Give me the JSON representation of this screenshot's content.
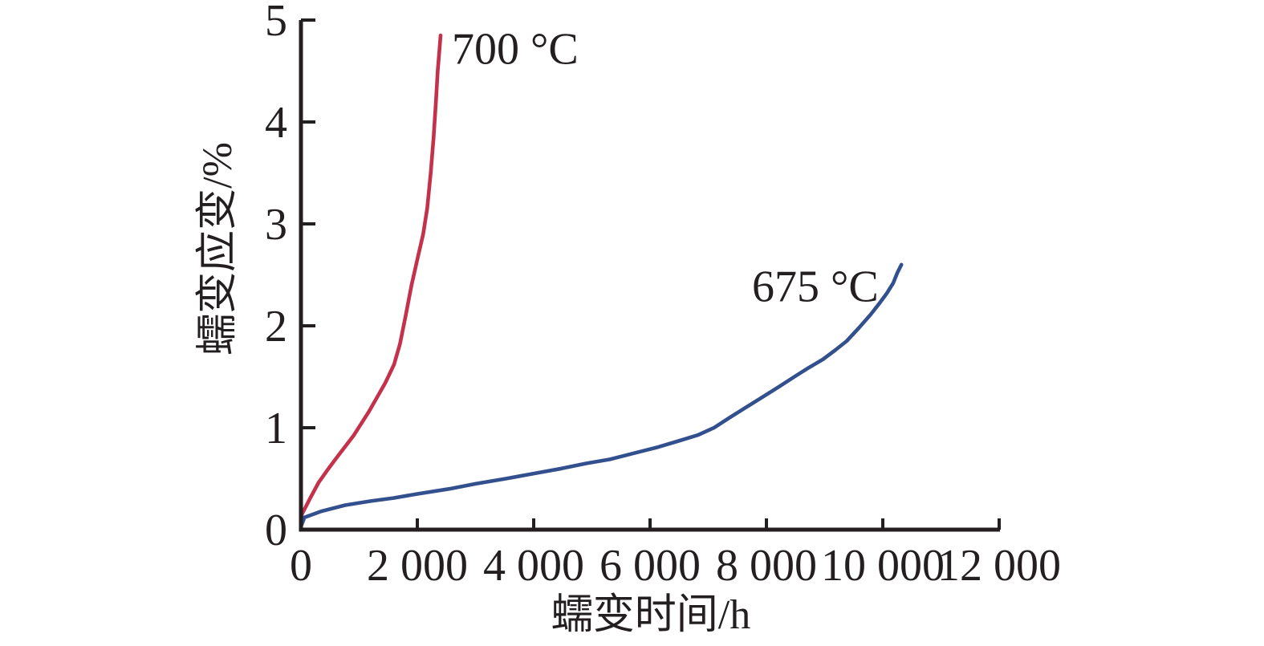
{
  "page": {
    "background_color": "#ffffff",
    "text_color": "#231f20"
  },
  "chart_data": {
    "type": "line",
    "title": "",
    "xlabel": "蠕变时间/h",
    "ylabel": "蠕变应变/%",
    "xlim": [
      0,
      12000
    ],
    "ylim": [
      0,
      5
    ],
    "grid": false,
    "legend_position": "inline-annotations",
    "axis_color": "#231f20",
    "x_ticks": [
      0,
      2000,
      4000,
      6000,
      8000,
      10000,
      12000
    ],
    "x_tick_labels": [
      "0",
      "2 000",
      "4 000",
      "6 000",
      "8 000",
      "10 000",
      "12 000"
    ],
    "y_ticks": [
      0,
      1,
      2,
      3,
      4,
      5
    ],
    "y_tick_labels": [
      "0",
      "1",
      "2",
      "3",
      "4",
      "5"
    ],
    "series": [
      {
        "name": "700 °C",
        "color": "#c4314b",
        "annotation": {
          "text": "700 °C",
          "x": 2593,
          "y": 4.57,
          "anchor": "start"
        },
        "points": [
          [
            0,
            0.03
          ],
          [
            15,
            0.15
          ],
          [
            150,
            0.3
          ],
          [
            300,
            0.46
          ],
          [
            450,
            0.58
          ],
          [
            620,
            0.71
          ],
          [
            900,
            0.92
          ],
          [
            1170,
            1.16
          ],
          [
            1450,
            1.44
          ],
          [
            1600,
            1.62
          ],
          [
            1700,
            1.82
          ],
          [
            1800,
            2.1
          ],
          [
            1900,
            2.4
          ],
          [
            2000,
            2.65
          ],
          [
            2100,
            2.9
          ],
          [
            2170,
            3.15
          ],
          [
            2230,
            3.5
          ],
          [
            2280,
            3.85
          ],
          [
            2320,
            4.2
          ],
          [
            2350,
            4.5
          ],
          [
            2380,
            4.7
          ],
          [
            2400,
            4.85
          ]
        ]
      },
      {
        "name": "675 °C",
        "color": "#32508e",
        "annotation": {
          "text": "675 °C",
          "x": 7752,
          "y": 2.24,
          "anchor": "start"
        },
        "points": [
          [
            0,
            0.03
          ],
          [
            60,
            0.12
          ],
          [
            350,
            0.18
          ],
          [
            760,
            0.24
          ],
          [
            1200,
            0.28
          ],
          [
            1590,
            0.31
          ],
          [
            2000,
            0.35
          ],
          [
            2550,
            0.4
          ],
          [
            3000,
            0.45
          ],
          [
            3520,
            0.5
          ],
          [
            4000,
            0.55
          ],
          [
            4480,
            0.6
          ],
          [
            4900,
            0.65
          ],
          [
            5310,
            0.69
          ],
          [
            5720,
            0.75
          ],
          [
            6140,
            0.81
          ],
          [
            6490,
            0.87
          ],
          [
            6830,
            0.93
          ],
          [
            7100,
            1.0
          ],
          [
            7370,
            1.1
          ],
          [
            7650,
            1.2
          ],
          [
            7930,
            1.3
          ],
          [
            8210,
            1.4
          ],
          [
            8480,
            1.5
          ],
          [
            8730,
            1.59
          ],
          [
            8970,
            1.67
          ],
          [
            9180,
            1.76
          ],
          [
            9380,
            1.85
          ],
          [
            9590,
            1.98
          ],
          [
            9790,
            2.11
          ],
          [
            9940,
            2.22
          ],
          [
            10070,
            2.32
          ],
          [
            10180,
            2.42
          ],
          [
            10250,
            2.52
          ],
          [
            10320,
            2.6
          ]
        ]
      }
    ]
  }
}
